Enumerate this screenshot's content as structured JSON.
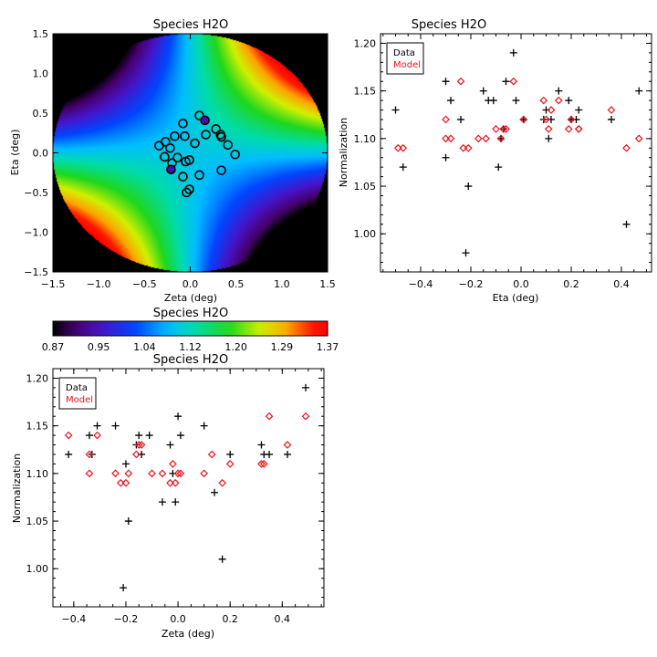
{
  "colors": {
    "data": "#000000",
    "model": "#e8141c",
    "map_background": "#000000"
  },
  "chart_data": [
    {
      "id": "map",
      "type": "heatmap",
      "title": "Species H2O",
      "xlabel": "Zeta (deg)",
      "ylabel": "Eta (deg)",
      "xlim": [
        -1.5,
        1.5
      ],
      "ylim": [
        -1.5,
        1.5
      ],
      "xticks": [
        "−1.5",
        "−1.0",
        "−0.5",
        "0.0",
        "0.5",
        "1.0",
        "1.5"
      ],
      "yticks": [
        "−1.5",
        "−1.0",
        "−0.5",
        "0.0",
        "0.5",
        "1.0",
        "1.5"
      ],
      "field_radius_deg": 1.5,
      "surface": "saddle: value increases along zeta=eta diagonal, decreases along zeta=-eta diagonal",
      "points": [
        {
          "x": 0.1,
          "y": 0.47
        },
        {
          "x": 0.16,
          "y": 0.41,
          "value": 0.95
        },
        {
          "x": -0.08,
          "y": 0.37
        },
        {
          "x": 0.28,
          "y": 0.3
        },
        {
          "x": -0.27,
          "y": 0.14
        },
        {
          "x": -0.17,
          "y": 0.21
        },
        {
          "x": -0.06,
          "y": 0.21
        },
        {
          "x": 0.05,
          "y": 0.12
        },
        {
          "x": 0.17,
          "y": 0.23
        },
        {
          "x": 0.33,
          "y": 0.23
        },
        {
          "x": 0.34,
          "y": 0.2
        },
        {
          "x": -0.34,
          "y": 0.09
        },
        {
          "x": -0.22,
          "y": 0.06
        },
        {
          "x": 0.41,
          "y": 0.1
        },
        {
          "x": 0.49,
          "y": -0.02
        },
        {
          "x": -0.28,
          "y": -0.05
        },
        {
          "x": -0.14,
          "y": -0.06
        },
        {
          "x": -0.01,
          "y": -0.09
        },
        {
          "x": -0.05,
          "y": -0.11
        },
        {
          "x": -0.2,
          "y": -0.13
        },
        {
          "x": -0.21,
          "y": -0.21,
          "value": 0.95
        },
        {
          "x": -0.08,
          "y": -0.3
        },
        {
          "x": 0.1,
          "y": -0.28
        },
        {
          "x": 0.34,
          "y": -0.22
        },
        {
          "x": -0.01,
          "y": -0.46
        },
        {
          "x": -0.04,
          "y": -0.5
        }
      ]
    },
    {
      "id": "colorbar",
      "type": "colorbar",
      "title": "Species H2O",
      "range": [
        0.87,
        1.37
      ],
      "ticks": [
        "0.87",
        "0.95",
        "1.04",
        "1.12",
        "1.20",
        "1.29",
        "1.37"
      ]
    },
    {
      "id": "eta_plot",
      "type": "scatter",
      "title": "Species H2O",
      "xlabel": "Eta (deg)",
      "ylabel": "Normalization",
      "xlim": [
        -0.56,
        0.52
      ],
      "ylim": [
        0.96,
        1.21
      ],
      "xticks": [
        {
          "v": -0.4,
          "t": "−0.4"
        },
        {
          "v": -0.2,
          "t": "−0.2"
        },
        {
          "v": 0.0,
          "t": "0.0"
        },
        {
          "v": 0.2,
          "t": "0.2"
        },
        {
          "v": 0.4,
          "t": "0.4"
        }
      ],
      "yticks": [
        {
          "v": 1.0,
          "t": "1.00"
        },
        {
          "v": 1.05,
          "t": "1.05"
        },
        {
          "v": 1.1,
          "t": "1.10"
        },
        {
          "v": 1.15,
          "t": "1.15"
        },
        {
          "v": 1.2,
          "t": "1.20"
        }
      ],
      "legend": [
        "Data",
        "Model"
      ],
      "series": [
        {
          "name": "Data",
          "marker": "plus",
          "x": [
            -0.5,
            -0.47,
            -0.3,
            -0.28,
            -0.3,
            -0.24,
            -0.22,
            -0.21,
            -0.15,
            -0.13,
            -0.11,
            -0.09,
            -0.08,
            -0.07,
            -0.06,
            -0.03,
            -0.02,
            0.01,
            0.09,
            0.1,
            0.11,
            0.12,
            0.15,
            0.19,
            0.2,
            0.22,
            0.23,
            0.36,
            0.42,
            0.47
          ],
          "y": [
            1.13,
            1.07,
            1.16,
            1.14,
            1.08,
            1.12,
            0.98,
            1.05,
            1.15,
            1.14,
            1.14,
            1.07,
            1.1,
            1.11,
            1.16,
            1.19,
            1.14,
            1.12,
            1.12,
            1.13,
            1.1,
            1.12,
            1.15,
            1.14,
            1.12,
            1.12,
            1.13,
            1.12,
            1.01,
            1.15
          ]
        },
        {
          "name": "Model",
          "marker": "diamond",
          "x": [
            -0.49,
            -0.47,
            -0.3,
            -0.3,
            -0.28,
            -0.24,
            -0.23,
            -0.21,
            -0.17,
            -0.14,
            -0.1,
            -0.08,
            -0.07,
            -0.06,
            -0.03,
            0.01,
            0.09,
            0.1,
            0.11,
            0.12,
            0.15,
            0.19,
            0.2,
            0.23,
            0.23,
            0.36,
            0.42,
            0.47
          ],
          "y": [
            1.09,
            1.09,
            1.12,
            1.1,
            1.1,
            1.16,
            1.09,
            1.09,
            1.1,
            1.1,
            1.11,
            1.1,
            1.11,
            1.11,
            1.16,
            1.12,
            1.14,
            1.12,
            1.11,
            1.13,
            1.14,
            1.11,
            1.12,
            1.11,
            1.11,
            1.13,
            1.09,
            1.1
          ]
        }
      ]
    },
    {
      "id": "zeta_plot",
      "type": "scatter",
      "title": "Species H2O",
      "xlabel": "Zeta (deg)",
      "ylabel": "Normalization",
      "xlim": [
        -0.48,
        0.56
      ],
      "ylim": [
        0.96,
        1.21
      ],
      "xticks": [
        {
          "v": -0.4,
          "t": "−0.4"
        },
        {
          "v": -0.2,
          "t": "−0.2"
        },
        {
          "v": 0.0,
          "t": "0.0"
        },
        {
          "v": 0.2,
          "t": "0.2"
        },
        {
          "v": 0.4,
          "t": "0.4"
        }
      ],
      "yticks": [
        {
          "v": 1.0,
          "t": "1.00"
        },
        {
          "v": 1.05,
          "t": "1.05"
        },
        {
          "v": 1.1,
          "t": "1.10"
        },
        {
          "v": 1.15,
          "t": "1.15"
        },
        {
          "v": 1.2,
          "t": "1.20"
        }
      ],
      "legend": [
        "Data",
        "Model"
      ],
      "series": [
        {
          "name": "Data",
          "marker": "plus",
          "x": [
            -0.42,
            -0.34,
            -0.33,
            -0.31,
            -0.24,
            -0.21,
            -0.2,
            -0.19,
            -0.16,
            -0.15,
            -0.14,
            -0.11,
            -0.06,
            -0.03,
            -0.02,
            -0.01,
            0.0,
            0.01,
            0.1,
            0.14,
            0.17,
            0.2,
            0.32,
            0.33,
            0.35,
            0.42,
            0.49
          ],
          "y": [
            1.12,
            1.14,
            1.12,
            1.15,
            1.15,
            0.98,
            1.11,
            1.05,
            1.13,
            1.14,
            1.12,
            1.14,
            1.07,
            1.13,
            1.1,
            1.07,
            1.16,
            1.14,
            1.15,
            1.08,
            1.01,
            1.12,
            1.13,
            1.12,
            1.12,
            1.12,
            1.19
          ]
        },
        {
          "name": "Model",
          "marker": "diamond",
          "x": [
            -0.42,
            -0.34,
            -0.34,
            -0.31,
            -0.24,
            -0.22,
            -0.2,
            -0.19,
            -0.16,
            -0.15,
            -0.14,
            -0.1,
            -0.06,
            -0.03,
            -0.02,
            -0.01,
            0.0,
            0.01,
            0.1,
            0.13,
            0.17,
            0.2,
            0.32,
            0.33,
            0.35,
            0.42,
            0.49
          ],
          "y": [
            1.14,
            1.12,
            1.1,
            1.14,
            1.1,
            1.09,
            1.09,
            1.1,
            1.12,
            1.13,
            1.13,
            1.1,
            1.1,
            1.09,
            1.11,
            1.09,
            1.1,
            1.1,
            1.1,
            1.12,
            1.09,
            1.11,
            1.11,
            1.11,
            1.16,
            1.13,
            1.16
          ]
        }
      ]
    }
  ]
}
